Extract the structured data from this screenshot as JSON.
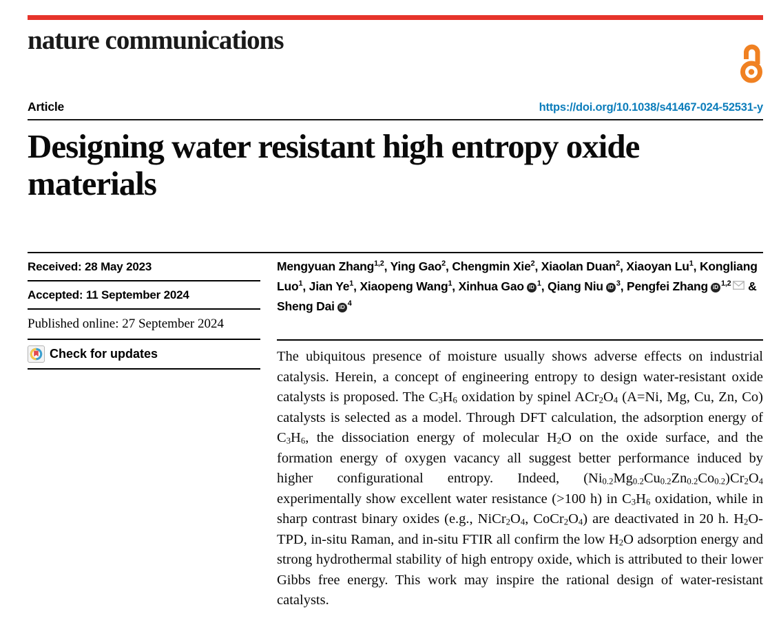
{
  "colors": {
    "brand_red": "#e6342b",
    "link_blue": "#0c7dbb",
    "oa_orange": "#f08122"
  },
  "header": {
    "journal": "nature communications",
    "article_label": "Article",
    "doi": "https://doi.org/10.1038/s41467-024-52531-y"
  },
  "title": "Designing water resistant high entropy oxide materials",
  "meta_rows": [
    {
      "text": "Received: 28 May 2023"
    },
    {
      "text": "Accepted: 11 September 2024"
    },
    {
      "text": "Published online: 27 September 2024"
    }
  ],
  "check_updates_label": "Check for updates",
  "authors": {
    "list": [
      {
        "name": "Mengyuan Zhang",
        "sup": "1,2"
      },
      {
        "name": "Ying Gao",
        "sup": "2"
      },
      {
        "name": "Chengmin Xie",
        "sup": "2"
      },
      {
        "name": "Xiaolan Duan",
        "sup": "2"
      },
      {
        "name": "Xiaoyan Lu",
        "sup": "1"
      },
      {
        "name": "Kongliang Luo",
        "sup": "1"
      },
      {
        "name": "Jian Ye",
        "sup": "1"
      },
      {
        "name": "Xiaopeng Wang",
        "sup": "1"
      },
      {
        "name": "Xinhua Gao",
        "orcid": true,
        "sup": "1"
      },
      {
        "name": "Qiang Niu",
        "orcid": true,
        "sup": "3"
      },
      {
        "name": "Pengfei Zhang",
        "orcid": true,
        "sup": "1,2",
        "email": true
      },
      {
        "name": "Sheng Dai",
        "orcid": true,
        "sup": "4"
      }
    ],
    "separator": ", ",
    "ampersand": " & "
  },
  "abstract": "The ubiquitous presence of moisture usually shows adverse effects on industrial catalysis. Herein, a concept of engineering entropy to design water-resistant oxide catalysts is proposed. The C~3~H~6~ oxidation by spinel ACr~2~O~4~ (A=Ni, Mg, Cu, Zn, Co) catalysts is selected as a model. Through DFT calculation, the adsorption energy of C~3~H~6~, the dissociation energy of molecular H~2~O on the oxide surface, and the formation energy of oxygen vacancy all suggest better performance induced by higher configurational entropy. Indeed, (Ni~0.2~Mg~0.2~Cu~0.2~Zn~0.2~Co~0.2~)Cr~2~O~4~ experimentally show excellent water resistance (>100 h) in C~3~H~6~ oxidation, while in sharp contrast binary oxides (e.g., NiCr~2~O~4~, CoCr~2~O~4~) are deactivated in 20 h. H~2~O-TPD, in-situ Raman, and in-situ FTIR all confirm the low H~2~O adsorption energy and strong hydrothermal stability of high entropy oxide, which is attributed to their lower Gibbs free energy. This work may inspire the rational design of water-resistant catalysts."
}
